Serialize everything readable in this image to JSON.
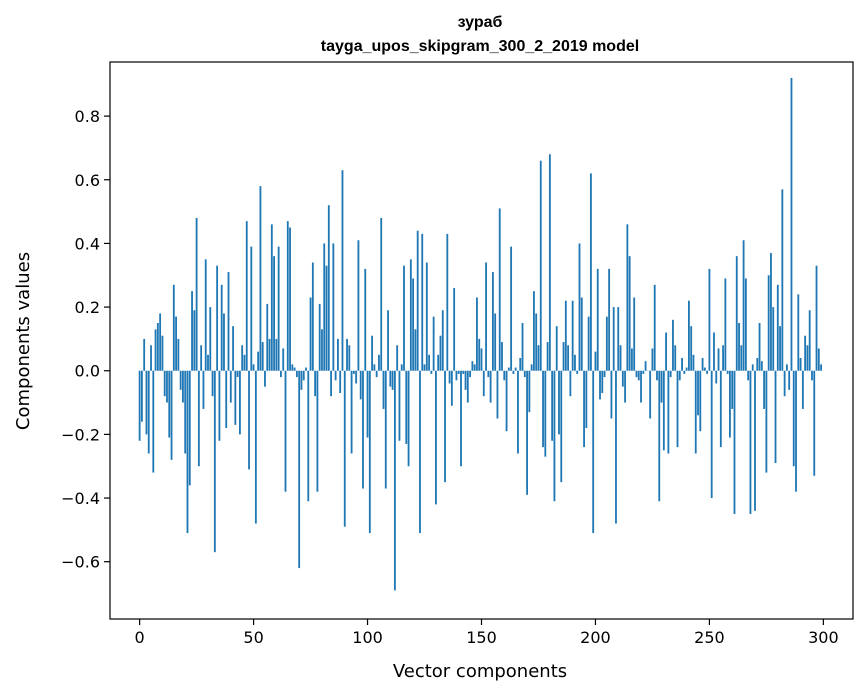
{
  "chart_data": {
    "type": "bar",
    "title": "зураб",
    "subtitle": "tayga_upos_skipgram_300_2_2019 model",
    "xlabel": "Vector components",
    "ylabel": "Components values",
    "xlim": [
      -13,
      313
    ],
    "ylim": [
      -0.78,
      0.97
    ],
    "xticks": [
      0,
      50,
      100,
      150,
      200,
      250,
      300
    ],
    "yticks": [
      -0.6,
      -0.4,
      -0.2,
      0.0,
      0.2,
      0.4,
      0.6,
      0.8
    ],
    "ytick_labels": [
      "−0.6",
      "−0.4",
      "−0.2",
      "0.0",
      "0.2",
      "0.4",
      "0.6",
      "0.8"
    ],
    "grid": false,
    "bar_color": "#1f77b4",
    "x": [
      0,
      1,
      2,
      3,
      4,
      5,
      6,
      7,
      8,
      9,
      10,
      11,
      12,
      13,
      14,
      15,
      16,
      17,
      18,
      19,
      20,
      21,
      22,
      23,
      24,
      25,
      26,
      27,
      28,
      29,
      30,
      31,
      32,
      33,
      34,
      35,
      36,
      37,
      38,
      39,
      40,
      41,
      42,
      43,
      44,
      45,
      46,
      47,
      48,
      49,
      50,
      51,
      52,
      53,
      54,
      55,
      56,
      57,
      58,
      59,
      60,
      61,
      62,
      63,
      64,
      65,
      66,
      67,
      68,
      69,
      70,
      71,
      72,
      73,
      74,
      75,
      76,
      77,
      78,
      79,
      80,
      81,
      82,
      83,
      84,
      85,
      86,
      87,
      88,
      89,
      90,
      91,
      92,
      93,
      94,
      95,
      96,
      97,
      98,
      99,
      100,
      101,
      102,
      103,
      104,
      105,
      106,
      107,
      108,
      109,
      110,
      111,
      112,
      113,
      114,
      115,
      116,
      117,
      118,
      119,
      120,
      121,
      122,
      123,
      124,
      125,
      126,
      127,
      128,
      129,
      130,
      131,
      132,
      133,
      134,
      135,
      136,
      137,
      138,
      139,
      140,
      141,
      142,
      143,
      144,
      145,
      146,
      147,
      148,
      149,
      150,
      151,
      152,
      153,
      154,
      155,
      156,
      157,
      158,
      159,
      160,
      161,
      162,
      163,
      164,
      165,
      166,
      167,
      168,
      169,
      170,
      171,
      172,
      173,
      174,
      175,
      176,
      177,
      178,
      179,
      180,
      181,
      182,
      183,
      184,
      185,
      186,
      187,
      188,
      189,
      190,
      191,
      192,
      193,
      194,
      195,
      196,
      197,
      198,
      199,
      200,
      201,
      202,
      203,
      204,
      205,
      206,
      207,
      208,
      209,
      210,
      211,
      212,
      213,
      214,
      215,
      216,
      217,
      218,
      219,
      220,
      221,
      222,
      223,
      224,
      225,
      226,
      227,
      228,
      229,
      230,
      231,
      232,
      233,
      234,
      235,
      236,
      237,
      238,
      239,
      240,
      241,
      242,
      243,
      244,
      245,
      246,
      247,
      248,
      249,
      250,
      251,
      252,
      253,
      254,
      255,
      256,
      257,
      258,
      259,
      260,
      261,
      262,
      263,
      264,
      265,
      266,
      267,
      268,
      269,
      270,
      271,
      272,
      273,
      274,
      275,
      276,
      277,
      278,
      279,
      280,
      281,
      282,
      283,
      284,
      285,
      286,
      287,
      288,
      289,
      290,
      291,
      292,
      293,
      294,
      295,
      296,
      297,
      298,
      299
    ],
    "values": [
      -0.22,
      -0.16,
      0.1,
      -0.2,
      -0.26,
      0.08,
      -0.32,
      0.13,
      0.15,
      0.18,
      0.11,
      -0.08,
      -0.1,
      -0.21,
      -0.28,
      0.27,
      0.17,
      0.1,
      -0.06,
      -0.1,
      -0.26,
      -0.51,
      -0.36,
      0.25,
      0.19,
      0.48,
      -0.3,
      0.08,
      -0.12,
      0.35,
      0.05,
      0.2,
      -0.08,
      -0.57,
      0.33,
      -0.22,
      0.27,
      0.18,
      -0.18,
      0.31,
      -0.1,
      0.14,
      -0.17,
      -0.02,
      -0.2,
      0.08,
      0.05,
      0.47,
      -0.31,
      0.39,
      0.02,
      -0.48,
      0.06,
      0.58,
      0.09,
      -0.05,
      0.21,
      0.1,
      0.46,
      0.36,
      0.1,
      0.39,
      -0.02,
      0.07,
      -0.38,
      0.47,
      0.45,
      0.02,
      0.01,
      -0.02,
      -0.62,
      -0.06,
      -0.03,
      0.01,
      -0.41,
      0.23,
      0.34,
      -0.08,
      -0.38,
      0.21,
      0.13,
      0.4,
      0.33,
      0.52,
      -0.08,
      0.4,
      -0.03,
      0.1,
      -0.07,
      0.63,
      -0.49,
      0.1,
      0.08,
      -0.26,
      -0.01,
      -0.04,
      0.41,
      -0.09,
      -0.37,
      0.32,
      -0.21,
      -0.51,
      0.11,
      0.02,
      -0.02,
      0.05,
      0.48,
      -0.12,
      -0.37,
      0.19,
      -0.05,
      -0.06,
      -0.69,
      0.08,
      -0.22,
      0.02,
      0.33,
      -0.23,
      -0.3,
      0.35,
      0.29,
      0.13,
      0.44,
      -0.51,
      0.43,
      0.02,
      0.34,
      0.05,
      -0.01,
      0.17,
      -0.42,
      0.05,
      0.11,
      0.19,
      -0.35,
      0.43,
      -0.04,
      -0.11,
      0.26,
      -0.03,
      -0.01,
      -0.3,
      -0.01,
      -0.06,
      -0.1,
      -0.02,
      0.03,
      0.02,
      0.23,
      0.1,
      0.07,
      -0.08,
      0.34,
      -0.02,
      -0.1,
      0.31,
      0.18,
      -0.15,
      0.51,
      0.09,
      -0.03,
      -0.19,
      0.01,
      0.39,
      -0.01,
      0.01,
      -0.26,
      0.04,
      0.15,
      -0.02,
      -0.39,
      -0.13,
      0.02,
      0.25,
      0.18,
      0.08,
      0.66,
      -0.24,
      -0.27,
      0.09,
      0.68,
      -0.22,
      -0.41,
      0.14,
      -0.2,
      -0.35,
      0.09,
      0.22,
      0.08,
      -0.08,
      0.22,
      0.05,
      -0.01,
      0.4,
      0.23,
      -0.24,
      -0.18,
      0.17,
      0.62,
      -0.51,
      0.06,
      0.32,
      -0.09,
      -0.07,
      -0.02,
      0.17,
      0.32,
      -0.15,
      0.2,
      -0.48,
      0.2,
      0.08,
      -0.05,
      -0.1,
      0.46,
      0.36,
      0.07,
      0.23,
      -0.02,
      -0.03,
      -0.1,
      -0.01,
      0.03,
      0.0,
      -0.15,
      0.07,
      0.27,
      -0.03,
      -0.41,
      -0.1,
      -0.25,
      0.12,
      -0.26,
      -0.02,
      0.16,
      0.08,
      -0.24,
      -0.03,
      0.04,
      -0.01,
      0.01,
      0.22,
      0.14,
      0.05,
      -0.26,
      -0.14,
      -0.19,
      0.04,
      0.01,
      -0.01,
      0.32,
      -0.4,
      0.12,
      -0.04,
      0.07,
      -0.24,
      0.08,
      0.29,
      -0.01,
      -0.21,
      -0.12,
      -0.45,
      0.36,
      0.15,
      0.08,
      0.41,
      0.29,
      -0.03,
      -0.45,
      0.02,
      -0.44,
      0.04,
      0.15,
      0.03,
      -0.12,
      -0.32,
      0.3,
      0.37,
      0.2,
      -0.29,
      0.27,
      0.14,
      0.57,
      -0.08,
      0.02,
      -0.06,
      0.92,
      -0.3,
      -0.38,
      0.24,
      0.04,
      -0.12,
      0.11,
      0.08,
      0.19,
      -0.03,
      -0.33,
      0.33,
      0.07,
      0.02
    ]
  }
}
